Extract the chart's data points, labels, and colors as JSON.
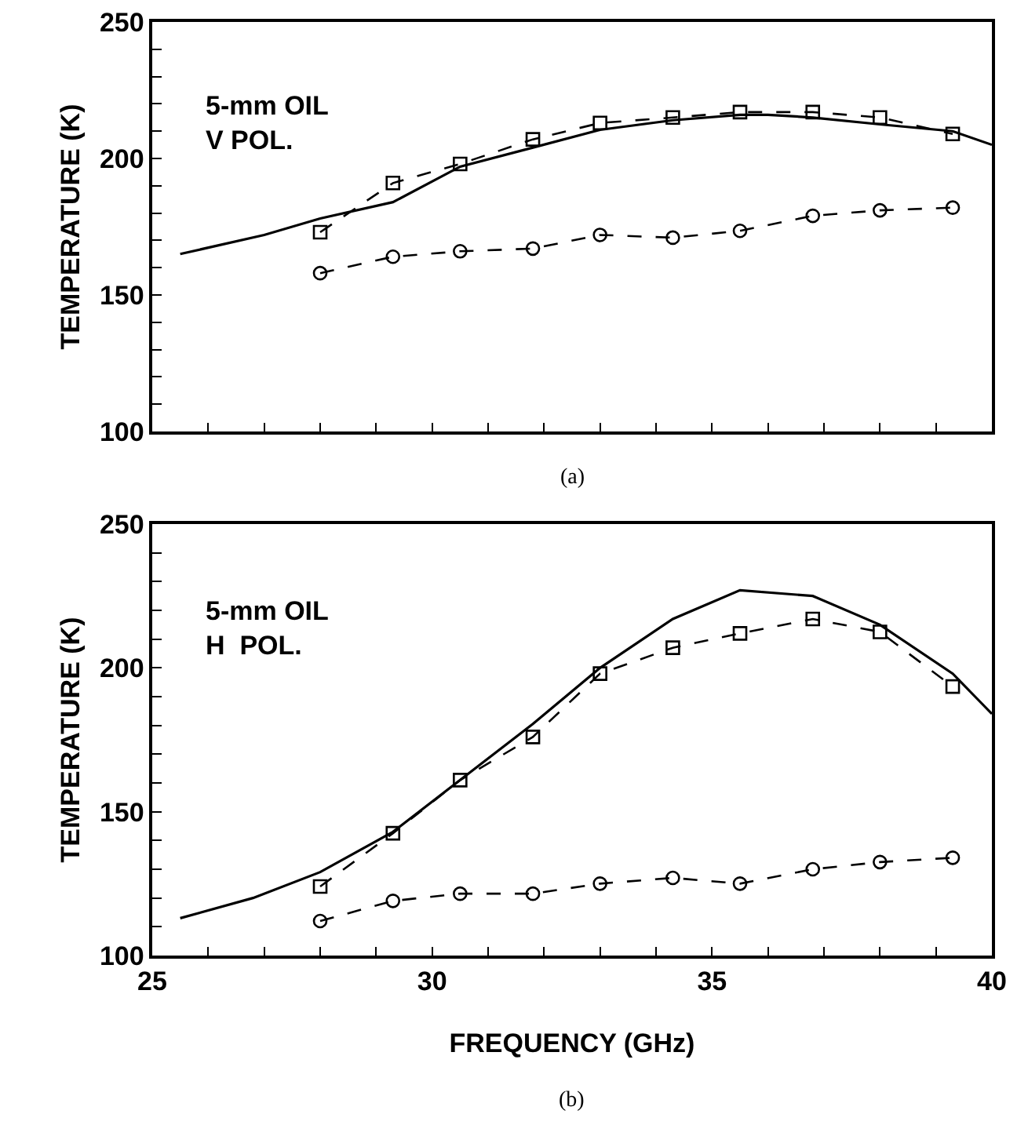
{
  "chart_data": [
    {
      "type": "line",
      "ylabel": "TEMPERATURE (K)",
      "annotations": [
        "5-mm OIL\nV POL.",
        "(a)"
      ],
      "xlim": [
        25,
        40
      ],
      "ylim": [
        100,
        250
      ],
      "tick_labels": "y",
      "grid": false,
      "xticks": [
        {
          "value": 25,
          "label": null
        },
        {
          "value": 26,
          "label": null
        },
        {
          "value": 27,
          "label": null
        },
        {
          "value": 28,
          "label": null
        },
        {
          "value": 29,
          "label": null
        },
        {
          "value": 30,
          "label": null
        },
        {
          "value": 31,
          "label": null
        },
        {
          "value": 32,
          "label": null
        },
        {
          "value": 33,
          "label": null
        },
        {
          "value": 34,
          "label": null
        },
        {
          "value": 35,
          "label": null
        },
        {
          "value": 36,
          "label": null
        },
        {
          "value": 37,
          "label": null
        },
        {
          "value": 38,
          "label": null
        },
        {
          "value": 39,
          "label": null
        },
        {
          "value": 40,
          "label": null
        }
      ],
      "yticks": [
        100,
        {
          "value": 110,
          "label": null
        },
        {
          "value": 120,
          "label": null
        },
        {
          "value": 130,
          "label": null
        },
        {
          "value": 140,
          "label": null
        },
        150,
        {
          "value": 160,
          "label": null
        },
        {
          "value": 170,
          "label": null
        },
        {
          "value": 180,
          "label": null
        },
        {
          "value": 190,
          "label": null
        },
        200,
        {
          "value": 210,
          "label": null
        },
        {
          "value": 220,
          "label": null
        },
        {
          "value": 230,
          "label": null
        },
        {
          "value": 240,
          "label": null
        },
        250
      ],
      "series": [
        {
          "color": "#000000",
          "marker": "none",
          "line_style": "solid",
          "x": [
            25.5,
            27,
            28,
            29.3,
            30.5,
            31.8,
            33,
            34.3,
            35.5,
            36,
            36.8,
            38,
            39.3,
            40
          ],
          "values": [
            165,
            172,
            178,
            184,
            197,
            204,
            210.5,
            214,
            216,
            216,
            215,
            212.5,
            210,
            205
          ]
        },
        {
          "color": "#000000",
          "marker": "square",
          "line_style": "dashed",
          "x": [
            28,
            29.3,
            30.5,
            31.8,
            33,
            34.3,
            35.5,
            36.8,
            38,
            39.3
          ],
          "values": [
            173,
            191,
            198,
            207,
            213,
            215,
            217,
            217,
            215,
            209
          ]
        },
        {
          "color": "#000000",
          "marker": "circle",
          "line_style": "dashed",
          "x": [
            28,
            29.3,
            30.5,
            31.8,
            33,
            34.3,
            35.5,
            36.8,
            38,
            39.3
          ],
          "values": [
            158,
            164,
            166,
            167,
            172,
            171,
            173.5,
            179,
            181,
            182
          ]
        }
      ]
    },
    {
      "type": "line",
      "xlabel": "FREQUENCY (GHz)",
      "ylabel": "TEMPERATURE (K)",
      "annotations": [
        "5-mm OIL\nH  POL.",
        "(b)"
      ],
      "xlim": [
        25,
        40
      ],
      "ylim": [
        100,
        250
      ],
      "grid": false,
      "xticks": [
        25,
        {
          "value": 26,
          "label": null
        },
        {
          "value": 27,
          "label": null
        },
        {
          "value": 28,
          "label": null
        },
        {
          "value": 29,
          "label": null
        },
        30,
        {
          "value": 31,
          "label": null
        },
        {
          "value": 32,
          "label": null
        },
        {
          "value": 33,
          "label": null
        },
        {
          "value": 34,
          "label": null
        },
        35,
        {
          "value": 36,
          "label": null
        },
        {
          "value": 37,
          "label": null
        },
        {
          "value": 38,
          "label": null
        },
        {
          "value": 39,
          "label": null
        },
        40
      ],
      "yticks": [
        100,
        {
          "value": 110,
          "label": null
        },
        {
          "value": 120,
          "label": null
        },
        {
          "value": 130,
          "label": null
        },
        {
          "value": 140,
          "label": null
        },
        150,
        {
          "value": 160,
          "label": null
        },
        {
          "value": 170,
          "label": null
        },
        {
          "value": 180,
          "label": null
        },
        {
          "value": 190,
          "label": null
        },
        200,
        {
          "value": 210,
          "label": null
        },
        {
          "value": 220,
          "label": null
        },
        {
          "value": 230,
          "label": null
        },
        {
          "value": 240,
          "label": null
        },
        250
      ],
      "series": [
        {
          "color": "#000000",
          "marker": "none",
          "line_style": "solid",
          "x": [
            25.5,
            26.8,
            28,
            29.3,
            30.5,
            31.8,
            33,
            34.3,
            35.5,
            36.8,
            38,
            39.3,
            40
          ],
          "values": [
            113,
            120,
            129,
            143,
            161,
            180.5,
            200,
            217,
            227,
            225,
            215,
            198,
            184
          ]
        },
        {
          "color": "#000000",
          "marker": "square",
          "line_style": "dashed",
          "x": [
            28,
            29.3,
            30.5,
            31.8,
            33,
            34.3,
            35.5,
            36.8,
            38,
            39.3
          ],
          "values": [
            124,
            142.5,
            161,
            176,
            198,
            207,
            212,
            217,
            212.5,
            193.5
          ]
        },
        {
          "color": "#000000",
          "marker": "circle",
          "line_style": "dashed",
          "x": [
            28,
            29.3,
            30.5,
            31.8,
            33,
            34.3,
            35.5,
            36.8,
            38,
            39.3
          ],
          "values": [
            112,
            119,
            121.5,
            121.5,
            125,
            127,
            125,
            130,
            132.5,
            134
          ]
        }
      ]
    }
  ]
}
